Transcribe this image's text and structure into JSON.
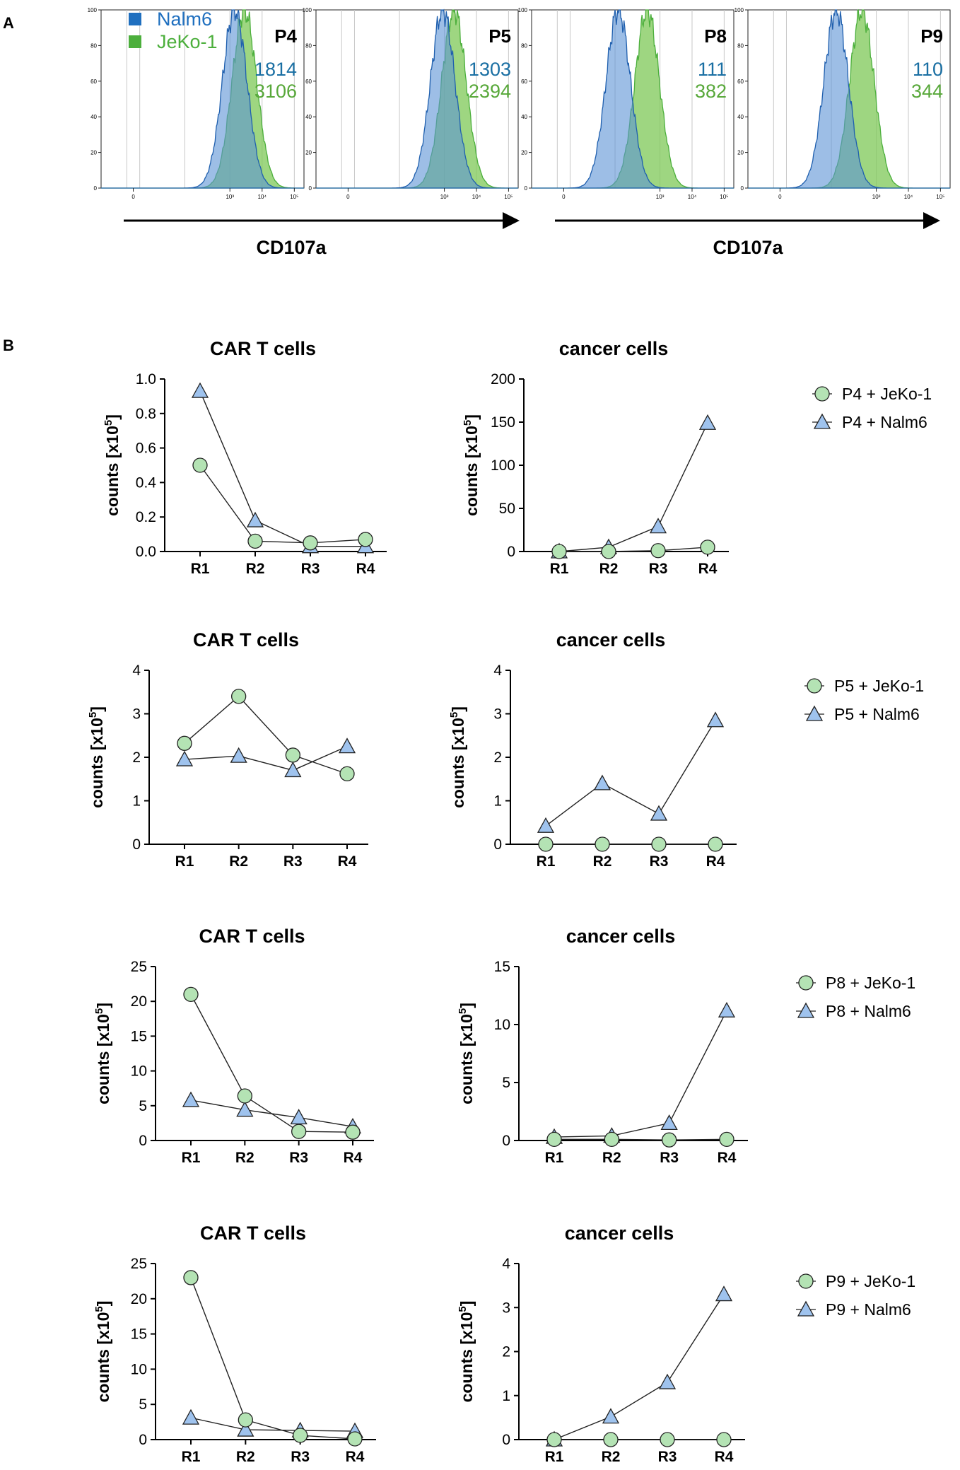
{
  "panel_a": {
    "label": "A",
    "xaxis_label": "CD107a",
    "legend": [
      {
        "name": "Nalm6",
        "color": "#1f6fbf"
      },
      {
        "name": "JeKo-1",
        "color": "#4caf3c"
      }
    ],
    "y_ticks": [
      "100",
      "80",
      "60",
      "40",
      "20",
      "0"
    ],
    "x_ticks": [
      "0",
      "10³",
      "10⁴",
      "10⁵"
    ],
    "value_colors": {
      "nalm6": "#1a6fa3",
      "jeko": "#58a83a"
    }
  },
  "panel_b": {
    "label": "B",
    "legend_colors": {
      "jeko": "#b4e3b4",
      "nalm": "#9fc3ee"
    }
  },
  "chart_data": [
    {
      "type": "histogram",
      "title": "P4",
      "nalm6_mfi": "1814",
      "jeko_mfi": "3106",
      "nalm6_peak_log10": 3.15,
      "jeko_peak_log10": 3.45,
      "xlim": [
        -1,
        5.3
      ],
      "ylim": [
        0,
        100
      ]
    },
    {
      "type": "histogram",
      "title": "P5",
      "nalm6_mfi": "1303",
      "jeko_mfi": "2394",
      "nalm6_peak_log10": 2.95,
      "jeko_peak_log10": 3.3,
      "xlim": [
        -1,
        5.3
      ],
      "ylim": [
        0,
        100
      ]
    },
    {
      "type": "histogram",
      "title": "P8",
      "nalm6_mfi": "111",
      "jeko_mfi": "382",
      "nalm6_peak_log10": 1.7,
      "jeko_peak_log10": 2.6,
      "xlim": [
        -1,
        5.3
      ],
      "ylim": [
        0,
        100
      ]
    },
    {
      "type": "histogram",
      "title": "P9",
      "nalm6_mfi": "110",
      "jeko_mfi": "344",
      "nalm6_peak_log10": 1.75,
      "jeko_peak_log10": 2.55,
      "xlim": [
        -1,
        5.3
      ],
      "ylim": [
        0,
        100
      ]
    },
    {
      "type": "line",
      "title": "CAR T cells",
      "ylabel": "counts [x10",
      "ylabel_exp": "5",
      "ylabel_end": "]",
      "categories": [
        "R1",
        "R2",
        "R3",
        "R4"
      ],
      "ylim": [
        0,
        1.0
      ],
      "yticks": [
        "0.0",
        "0.2",
        "0.4",
        "0.6",
        "0.8",
        "1.0"
      ],
      "series": [
        {
          "name": "P4 + JeKo-1",
          "marker": "circle",
          "values": [
            0.5,
            0.06,
            0.05,
            0.07
          ]
        },
        {
          "name": "P4 + Nalm6",
          "marker": "triangle",
          "values": [
            0.93,
            0.18,
            0.03,
            0.03
          ]
        }
      ]
    },
    {
      "type": "line",
      "title": "cancer cells",
      "ylabel": "counts [x10",
      "ylabel_exp": "5",
      "ylabel_end": "]",
      "categories": [
        "R1",
        "R2",
        "R3",
        "R4"
      ],
      "ylim": [
        0,
        200
      ],
      "yticks": [
        "0",
        "50",
        "100",
        "150",
        "200"
      ],
      "series": [
        {
          "name": "P4 + JeKo-1",
          "marker": "circle",
          "values": [
            0,
            0,
            1,
            5
          ]
        },
        {
          "name": "P4 + Nalm6",
          "marker": "triangle",
          "values": [
            0,
            5,
            29,
            149
          ]
        }
      ]
    },
    {
      "type": "line",
      "title": "CAR T cells",
      "ylabel": "counts [x10",
      "ylabel_exp": "5",
      "ylabel_end": "]",
      "categories": [
        "R1",
        "R2",
        "R3",
        "R4"
      ],
      "ylim": [
        0,
        4
      ],
      "yticks": [
        "0",
        "1",
        "2",
        "3",
        "4"
      ],
      "series": [
        {
          "name": "P5 + JeKo-1",
          "marker": "circle",
          "values": [
            2.32,
            3.4,
            2.05,
            1.62
          ]
        },
        {
          "name": "P5 + Nalm6",
          "marker": "triangle",
          "values": [
            1.95,
            2.03,
            1.7,
            2.25
          ]
        }
      ]
    },
    {
      "type": "line",
      "title": "cancer cells",
      "ylabel": "counts [x10",
      "ylabel_exp": "5",
      "ylabel_end": "]",
      "categories": [
        "R1",
        "R2",
        "R3",
        "R4"
      ],
      "ylim": [
        0,
        4
      ],
      "yticks": [
        "0",
        "1",
        "2",
        "3",
        "4"
      ],
      "series": [
        {
          "name": "P5 + JeKo-1",
          "marker": "circle",
          "values": [
            0,
            0,
            0,
            0
          ]
        },
        {
          "name": "P5 + Nalm6",
          "marker": "triangle",
          "values": [
            0.42,
            1.4,
            0.7,
            2.85
          ]
        }
      ]
    },
    {
      "type": "line",
      "title": "CAR T cells",
      "ylabel": "counts [x10",
      "ylabel_exp": "5",
      "ylabel_end": "]",
      "categories": [
        "R1",
        "R2",
        "R3",
        "R4"
      ],
      "ylim": [
        0,
        25
      ],
      "yticks": [
        "0",
        "5",
        "10",
        "15",
        "20",
        "25"
      ],
      "series": [
        {
          "name": "P8 + JeKo-1",
          "marker": "circle",
          "values": [
            21,
            6.4,
            1.3,
            1.2
          ]
        },
        {
          "name": "P8 + Nalm6",
          "marker": "triangle",
          "values": [
            5.8,
            4.4,
            3.3,
            2.0
          ]
        }
      ]
    },
    {
      "type": "line",
      "title": "cancer cells",
      "ylabel": "counts [x10",
      "ylabel_exp": "5",
      "ylabel_end": "]",
      "categories": [
        "R1",
        "R2",
        "R3",
        "R4"
      ],
      "ylim": [
        0,
        15
      ],
      "yticks": [
        "0",
        "5",
        "10",
        "15"
      ],
      "series": [
        {
          "name": "P8 + JeKo-1",
          "marker": "circle",
          "values": [
            0.1,
            0.1,
            0.05,
            0.1
          ]
        },
        {
          "name": "P8 + Nalm6",
          "marker": "triangle",
          "values": [
            0.3,
            0.4,
            1.5,
            11.2
          ]
        }
      ]
    },
    {
      "type": "line",
      "title": "CAR T cells",
      "ylabel": "counts [x10",
      "ylabel_exp": "5",
      "ylabel_end": "]",
      "categories": [
        "R1",
        "R2",
        "R3",
        "R4"
      ],
      "ylim": [
        0,
        25
      ],
      "yticks": [
        "0",
        "5",
        "10",
        "15",
        "20",
        "25"
      ],
      "series": [
        {
          "name": "P9 + JeKo-1",
          "marker": "circle",
          "values": [
            23,
            2.8,
            0.6,
            0.1
          ]
        },
        {
          "name": "P9 + Nalm6",
          "marker": "triangle",
          "values": [
            3.1,
            1.4,
            1.3,
            1.2
          ]
        }
      ]
    },
    {
      "type": "line",
      "title": "cancer cells",
      "ylabel": "counts [x10",
      "ylabel_exp": "5",
      "ylabel_end": "]",
      "categories": [
        "R1",
        "R2",
        "R3",
        "R4"
      ],
      "ylim": [
        0,
        4
      ],
      "yticks": [
        "0",
        "1",
        "2",
        "3",
        "4"
      ],
      "series": [
        {
          "name": "P9 + JeKo-1",
          "marker": "circle",
          "values": [
            0,
            0,
            0,
            0
          ]
        },
        {
          "name": "P9 + Nalm6",
          "marker": "triangle",
          "values": [
            0,
            0.52,
            1.3,
            3.3
          ]
        }
      ]
    }
  ]
}
